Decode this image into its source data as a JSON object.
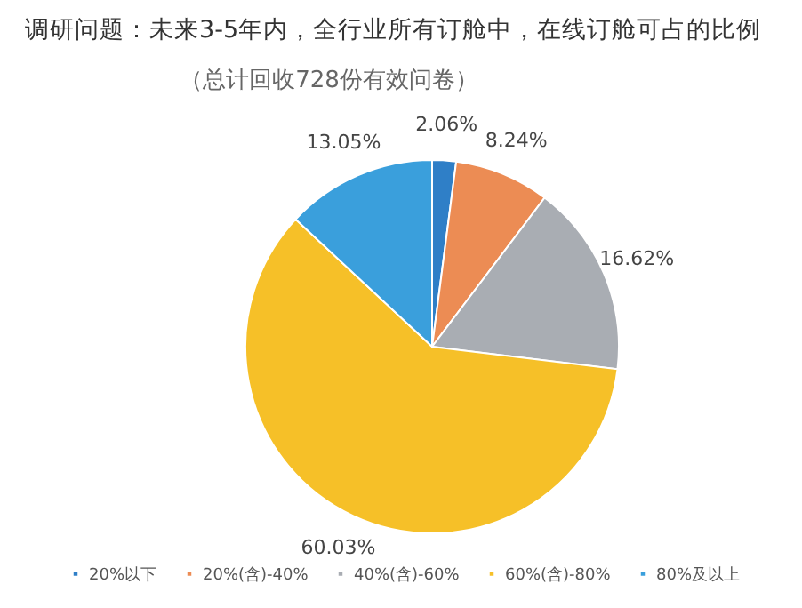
{
  "chart_data": {
    "type": "pie",
    "title": "调研问题：未来3-5年内，全行业所有订舱中，在线订舱可占的比例",
    "subtitle": "（总计回收728份有效问卷）",
    "categories": [
      "20%以下",
      "20%(含)-40%",
      "40%(含)-60%",
      "60%(含)-80%",
      "80%及以上"
    ],
    "values": [
      2.06,
      8.24,
      16.62,
      60.03,
      13.05
    ],
    "value_labels": [
      "2.06%",
      "8.24%",
      "16.62%",
      "60.03%",
      "13.05%"
    ],
    "colors": [
      "#2f7fc7",
      "#ec8c54",
      "#a9adb3",
      "#f6c028",
      "#3a9fdc"
    ],
    "legend": "bottom"
  }
}
